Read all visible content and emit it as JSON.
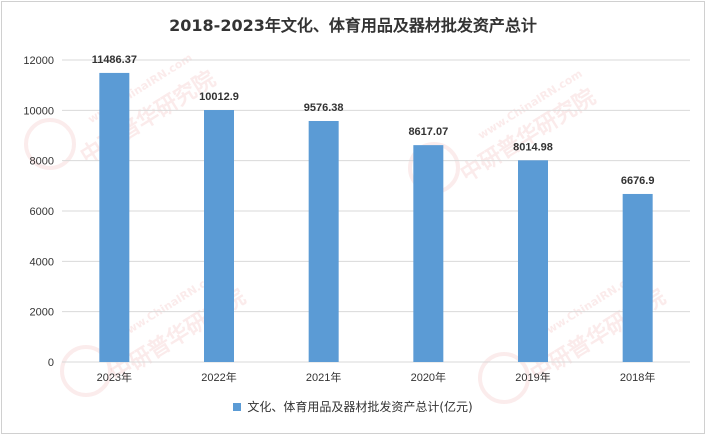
{
  "title": "2018-2023年文化、体育用品及器材批发资产总计",
  "watermark": {
    "logo_text": "CIRN",
    "url_text": "www.ChinaIRN.com",
    "brand_text": "中研普华研究院"
  },
  "colors": {
    "bar": "#5b9bd5",
    "grid": "#d9d9d9",
    "text": "#333333"
  },
  "chart_data": {
    "type": "bar",
    "title": "2018-2023年文化、体育用品及器材批发资产总计",
    "categories": [
      "2023年",
      "2022年",
      "2021年",
      "2020年",
      "2019年",
      "2018年"
    ],
    "series": [
      {
        "name": "文化、体育用品及器材批发资产总计(亿元)",
        "values": [
          11486.37,
          10012.9,
          9576.38,
          8617.07,
          8014.98,
          6676.9
        ],
        "labels": [
          "11486.37",
          "10012.9",
          "9576.38",
          "8617.07",
          "8014.98",
          "6676.9"
        ]
      }
    ],
    "ylim": [
      0,
      12000
    ],
    "yticks": [
      0,
      2000,
      4000,
      6000,
      8000,
      10000,
      12000
    ],
    "grid": true,
    "legend_position": "bottom"
  }
}
